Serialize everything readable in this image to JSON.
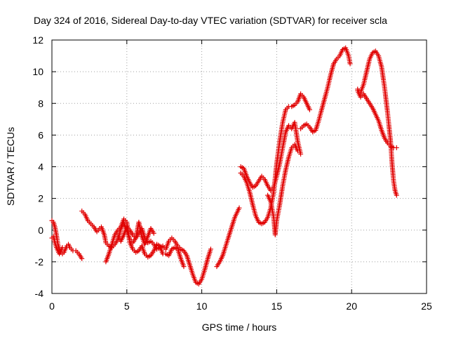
{
  "chart_data": {
    "type": "scatter",
    "title": "Day 324 of 2016, Sidereal Day-to-day VTEC variation (SDTVAR) for receiver scla",
    "xlabel": "GPS time / hours",
    "ylabel": "SDTVAR / TECUs",
    "xlim": [
      0,
      25
    ],
    "ylim": [
      -4,
      12
    ],
    "xticks": [
      0,
      5,
      10,
      15,
      20,
      25
    ],
    "yticks": [
      -4,
      -2,
      0,
      2,
      4,
      6,
      8,
      10,
      12
    ],
    "grid": true,
    "marker": "plus",
    "color": "#e00000",
    "segments": [
      [
        [
          0.0,
          0.6
        ],
        [
          0.1,
          0.5
        ],
        [
          0.2,
          0.2
        ],
        [
          0.3,
          -0.3
        ],
        [
          0.4,
          -0.9
        ],
        [
          0.5,
          -1.2
        ],
        [
          0.6,
          -1.4
        ],
        [
          0.7,
          -1.5
        ],
        [
          0.8,
          -1.4
        ],
        [
          0.9,
          -1.2
        ],
        [
          1.0,
          -1.0
        ],
        [
          1.1,
          -0.9
        ],
        [
          1.2,
          -1.1
        ],
        [
          1.4,
          -1.3
        ],
        [
          1.6,
          -1.3
        ],
        [
          1.8,
          -1.5
        ],
        [
          2.0,
          -1.8
        ]
      ],
      [
        [
          0.0,
          -0.5
        ],
        [
          0.1,
          -0.4
        ],
        [
          0.2,
          -0.8
        ],
        [
          0.3,
          -1.1
        ],
        [
          0.4,
          -1.3
        ],
        [
          0.5,
          -1.5
        ],
        [
          0.6,
          -1.3
        ],
        [
          0.7,
          -1.1
        ]
      ],
      [
        [
          2.0,
          1.2
        ],
        [
          2.2,
          1.0
        ],
        [
          2.4,
          0.6
        ],
        [
          2.6,
          0.4
        ],
        [
          2.8,
          0.2
        ],
        [
          3.0,
          -0.1
        ],
        [
          3.2,
          0.1
        ],
        [
          3.3,
          0.2
        ],
        [
          3.5,
          -0.3
        ],
        [
          3.6,
          -0.8
        ],
        [
          3.8,
          -1.0
        ],
        [
          4.0,
          -1.1
        ],
        [
          4.2,
          -0.9
        ],
        [
          4.4,
          -0.6
        ],
        [
          4.5,
          -0.3
        ],
        [
          4.6,
          0.1
        ],
        [
          4.8,
          0.4
        ],
        [
          5.0,
          0.0
        ],
        [
          5.2,
          -0.6
        ],
        [
          5.4,
          -0.8
        ],
        [
          5.6,
          -0.5
        ],
        [
          5.8,
          -0.2
        ],
        [
          6.0,
          0.1
        ],
        [
          6.2,
          -0.5
        ],
        [
          6.4,
          -0.8
        ],
        [
          6.6,
          -0.7
        ],
        [
          6.8,
          -0.9
        ],
        [
          7.0,
          -1.2
        ],
        [
          7.2,
          -1.1
        ],
        [
          7.4,
          -1.0
        ],
        [
          7.6,
          -1.2
        ],
        [
          7.8,
          -0.7
        ],
        [
          8.0,
          -0.5
        ],
        [
          8.2,
          -0.7
        ],
        [
          8.4,
          -1.0
        ],
        [
          8.6,
          -1.2
        ],
        [
          8.8,
          -1.3
        ],
        [
          9.0,
          -1.6
        ],
        [
          9.2,
          -2.2
        ],
        [
          9.4,
          -2.8
        ],
        [
          9.6,
          -3.3
        ],
        [
          9.8,
          -3.4
        ],
        [
          10.0,
          -3.1
        ],
        [
          10.2,
          -2.5
        ],
        [
          10.4,
          -1.8
        ],
        [
          10.6,
          -1.2
        ]
      ],
      [
        [
          3.6,
          -2.0
        ],
        [
          3.8,
          -1.5
        ],
        [
          4.0,
          -0.9
        ],
        [
          4.2,
          -0.3
        ],
        [
          4.4,
          0.0
        ],
        [
          4.6,
          0.2
        ],
        [
          4.8,
          0.7
        ],
        [
          5.0,
          0.5
        ],
        [
          5.2,
          -0.8
        ],
        [
          5.4,
          -1.2
        ],
        [
          5.6,
          -1.4
        ],
        [
          5.8,
          -1.3
        ],
        [
          6.0,
          -1.0
        ],
        [
          6.2,
          -1.5
        ],
        [
          6.4,
          -1.7
        ],
        [
          6.6,
          -1.6
        ],
        [
          6.8,
          -1.3
        ],
        [
          7.0,
          -0.9
        ],
        [
          7.2,
          -1.0
        ],
        [
          7.4,
          -1.5
        ],
        [
          7.6,
          -1.5
        ],
        [
          7.8,
          -1.6
        ],
        [
          8.0,
          -1.2
        ],
        [
          8.2,
          -1.1
        ],
        [
          8.4,
          -1.2
        ],
        [
          8.6,
          -1.8
        ],
        [
          8.8,
          -2.3
        ]
      ],
      [
        [
          4.4,
          -0.4
        ],
        [
          4.6,
          -0.7
        ],
        [
          4.8,
          -0.3
        ],
        [
          5.0,
          0.2
        ],
        [
          5.2,
          0.0
        ],
        [
          5.4,
          -0.3
        ],
        [
          5.6,
          -0.5
        ],
        [
          5.8,
          0.5
        ],
        [
          6.0,
          -0.4
        ],
        [
          6.2,
          -0.9
        ],
        [
          6.4,
          -0.4
        ],
        [
          6.6,
          0.1
        ],
        [
          6.8,
          -0.2
        ]
      ],
      [
        [
          11.0,
          -2.3
        ],
        [
          11.2,
          -2.0
        ],
        [
          11.4,
          -1.6
        ],
        [
          11.6,
          -1.0
        ],
        [
          11.8,
          -0.4
        ],
        [
          12.0,
          0.2
        ],
        [
          12.2,
          0.8
        ],
        [
          12.4,
          1.2
        ],
        [
          12.5,
          1.4
        ]
      ],
      [
        [
          12.6,
          4.0
        ],
        [
          12.8,
          3.9
        ],
        [
          13.0,
          3.4
        ],
        [
          13.2,
          3.0
        ],
        [
          13.4,
          2.7
        ],
        [
          13.6,
          2.8
        ],
        [
          13.8,
          3.1
        ],
        [
          14.0,
          3.4
        ],
        [
          14.2,
          3.2
        ],
        [
          14.4,
          2.8
        ],
        [
          14.6,
          2.5
        ],
        [
          14.8,
          2.7
        ],
        [
          15.0,
          3.4
        ],
        [
          15.2,
          4.2
        ],
        [
          15.4,
          5.2
        ],
        [
          15.6,
          6.2
        ],
        [
          15.8,
          6.6
        ],
        [
          16.0,
          6.4
        ],
        [
          16.2,
          6.8
        ],
        [
          16.4,
          5.6
        ],
        [
          16.6,
          4.8
        ]
      ],
      [
        [
          12.6,
          3.6
        ],
        [
          12.8,
          3.4
        ],
        [
          13.0,
          3.0
        ],
        [
          13.2,
          2.4
        ],
        [
          13.4,
          1.6
        ],
        [
          13.6,
          0.9
        ],
        [
          13.8,
          0.5
        ],
        [
          14.0,
          0.4
        ],
        [
          14.2,
          0.5
        ],
        [
          14.4,
          0.8
        ],
        [
          14.6,
          1.4
        ],
        [
          14.8,
          2.4
        ],
        [
          15.0,
          4.2
        ],
        [
          15.2,
          5.6
        ],
        [
          15.4,
          6.8
        ],
        [
          15.6,
          7.6
        ],
        [
          15.8,
          7.8
        ],
        [
          16.0,
          7.8
        ],
        [
          16.2,
          7.9
        ],
        [
          16.4,
          8.1
        ],
        [
          16.6,
          8.6
        ],
        [
          16.8,
          8.4
        ],
        [
          17.0,
          8.0
        ],
        [
          17.2,
          7.6
        ]
      ],
      [
        [
          14.4,
          2.2
        ],
        [
          14.6,
          1.8
        ],
        [
          14.8,
          0.8
        ],
        [
          14.9,
          -0.3
        ],
        [
          15.0,
          0.6
        ],
        [
          15.2,
          1.6
        ],
        [
          15.4,
          2.8
        ],
        [
          15.6,
          3.8
        ],
        [
          15.8,
          4.6
        ],
        [
          16.0,
          5.2
        ],
        [
          16.2,
          5.4
        ],
        [
          16.4,
          5.0
        ]
      ],
      [
        [
          16.6,
          6.4
        ],
        [
          16.8,
          6.6
        ],
        [
          17.0,
          6.7
        ],
        [
          17.2,
          6.5
        ],
        [
          17.4,
          6.2
        ],
        [
          17.6,
          6.3
        ],
        [
          17.8,
          6.9
        ],
        [
          18.0,
          7.6
        ],
        [
          18.2,
          8.3
        ],
        [
          18.4,
          9.0
        ],
        [
          18.6,
          9.8
        ],
        [
          18.8,
          10.5
        ],
        [
          19.0,
          10.8
        ],
        [
          19.2,
          11.0
        ],
        [
          19.4,
          11.4
        ],
        [
          19.6,
          11.5
        ],
        [
          19.8,
          11.0
        ],
        [
          19.9,
          10.5
        ]
      ],
      [
        [
          20.4,
          8.9
        ],
        [
          20.6,
          8.7
        ],
        [
          20.8,
          9.2
        ],
        [
          21.0,
          10.0
        ],
        [
          21.2,
          10.8
        ],
        [
          21.4,
          11.2
        ],
        [
          21.6,
          11.3
        ],
        [
          21.8,
          11.0
        ],
        [
          22.0,
          10.3
        ],
        [
          22.2,
          9.0
        ],
        [
          22.4,
          7.4
        ],
        [
          22.6,
          5.6
        ],
        [
          22.7,
          4.2
        ],
        [
          22.8,
          3.1
        ],
        [
          22.9,
          2.5
        ],
        [
          23.0,
          2.2
        ]
      ],
      [
        [
          20.4,
          8.8
        ],
        [
          20.6,
          8.4
        ],
        [
          20.8,
          8.6
        ],
        [
          21.0,
          8.3
        ],
        [
          21.2,
          8.0
        ],
        [
          21.4,
          7.7
        ],
        [
          21.6,
          7.3
        ],
        [
          21.8,
          6.9
        ],
        [
          22.0,
          6.3
        ],
        [
          22.2,
          5.8
        ],
        [
          22.4,
          5.5
        ],
        [
          22.6,
          5.3
        ],
        [
          22.8,
          5.2
        ],
        [
          23.0,
          5.2
        ]
      ]
    ]
  }
}
